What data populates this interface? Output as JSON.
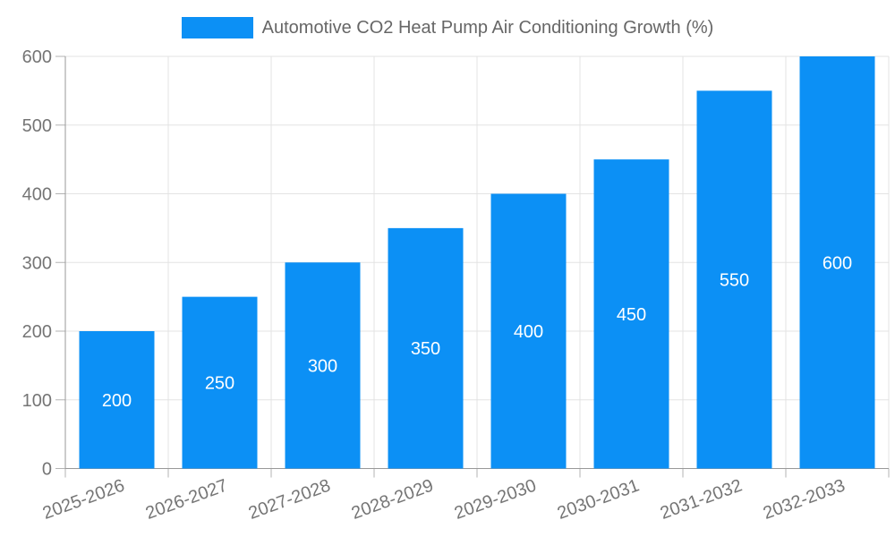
{
  "chart_data": {
    "type": "bar",
    "title": "",
    "xlabel": "",
    "ylabel": "",
    "categories": [
      "2025-2026",
      "2026-2027",
      "2027-2028",
      "2028-2029",
      "2029-2030",
      "2030-2031",
      "2031-2032",
      "2032-2033"
    ],
    "series": [
      {
        "name": "Automotive CO2 Heat Pump Air Conditioning Growth (%)",
        "values": [
          200,
          250,
          300,
          350,
          400,
          450,
          550,
          600
        ],
        "color": "#0c90f5"
      }
    ],
    "ylim": [
      0,
      600
    ],
    "yticks": [
      0,
      100,
      200,
      300,
      400,
      500,
      600
    ],
    "grid": true,
    "legend_position": "top-center",
    "x_label_rotation_deg": -20,
    "value_labels": {
      "visible": true,
      "position": "center",
      "color": "#ffffff"
    },
    "colors": {
      "bar": "#0c90f5",
      "grid": "#e3e3e3",
      "axis": "#999999",
      "tick": "#b3b3b3",
      "axis_text": "#757575",
      "legend_text": "#666666",
      "background": "#ffffff"
    }
  }
}
